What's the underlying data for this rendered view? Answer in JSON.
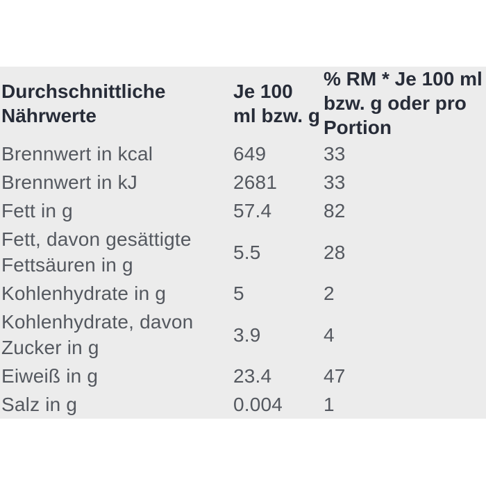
{
  "colors": {
    "page_background": "#ffffff",
    "table_background": "#ececec",
    "header_text": "#272c38",
    "body_text": "#54585f"
  },
  "chart_data": {
    "type": "table",
    "title": "Durchschnittliche Nährwerte",
    "columns": [
      "Durchschnittliche Nährwerte",
      "Je 100 ml bzw. g",
      "% RM * Je 100 ml bzw. g oder pro Portion"
    ],
    "rows": [
      [
        "Brennwert in kcal",
        "649",
        "33"
      ],
      [
        "Brennwert in kJ",
        "2681",
        "33"
      ],
      [
        "Fett in g",
        "57.4",
        "82"
      ],
      [
        "Fett, davon gesättigte Fettsäuren in g",
        "5.5",
        "28"
      ],
      [
        "Kohlenhydrate in g",
        "5",
        "2"
      ],
      [
        "Kohlenhydrate, davon Zucker in g",
        "3.9",
        "4"
      ],
      [
        "Eiweiß in g",
        "23.4",
        "47"
      ],
      [
        "Salz in g",
        "0.004",
        "1"
      ]
    ],
    "layout": {
      "grid": "off",
      "row_borders": "none",
      "header_position": "top"
    }
  }
}
